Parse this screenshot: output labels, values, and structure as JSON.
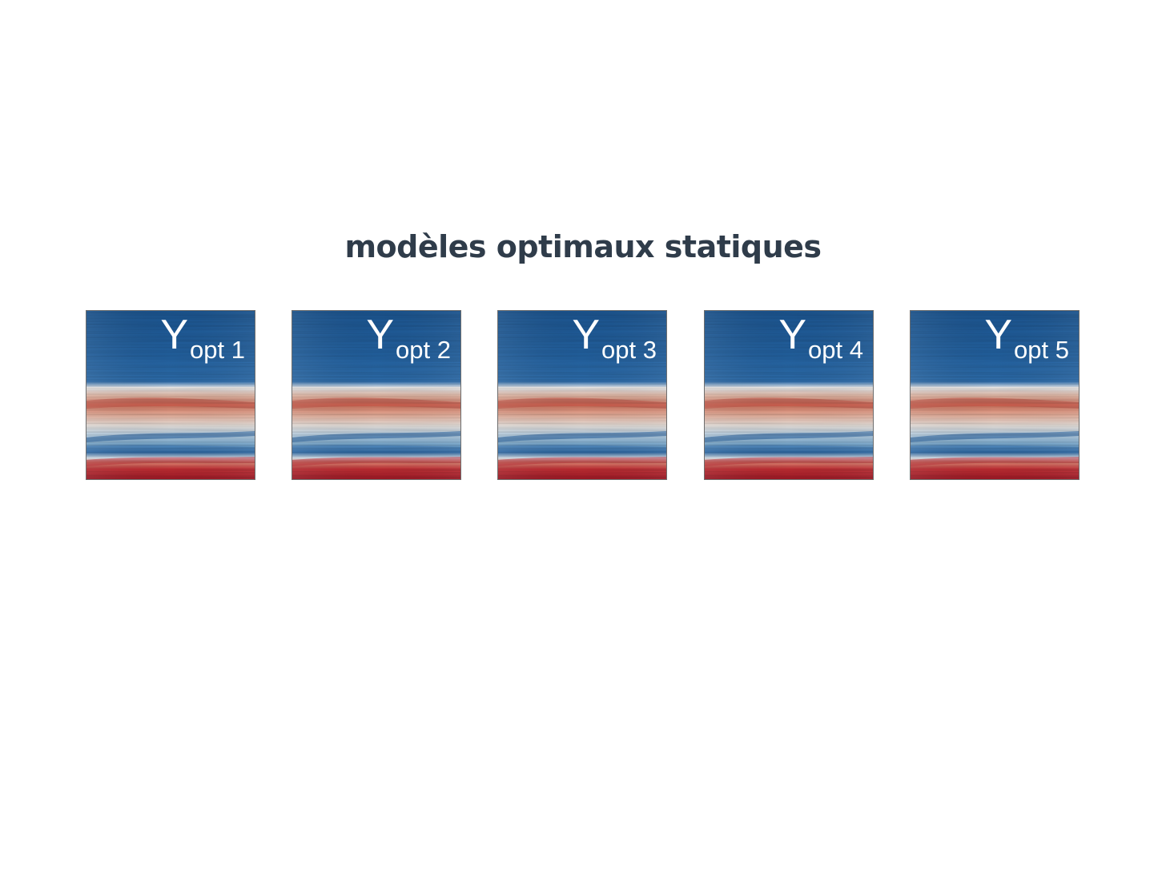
{
  "slide": {
    "title": "modèles optimaux statiques"
  },
  "panels": [
    {
      "symbol": "Y",
      "subscript": "opt 1"
    },
    {
      "symbol": "Y",
      "subscript": "opt 2"
    },
    {
      "symbol": "Y",
      "subscript": "opt 3"
    },
    {
      "symbol": "Y",
      "subscript": "opt 4"
    },
    {
      "symbol": "Y",
      "subscript": "opt 5"
    }
  ],
  "colors": {
    "title": "#2f3c4a",
    "deep_blue": "#1f5e9e",
    "mid_blue": "#2d6fb3",
    "light_blue": "#d5e6f3",
    "pale": "#f2ede8",
    "salmon": "#e7a18a",
    "red": "#cf5445",
    "deep_red": "#b3202c",
    "border": "#6e6e6e"
  }
}
